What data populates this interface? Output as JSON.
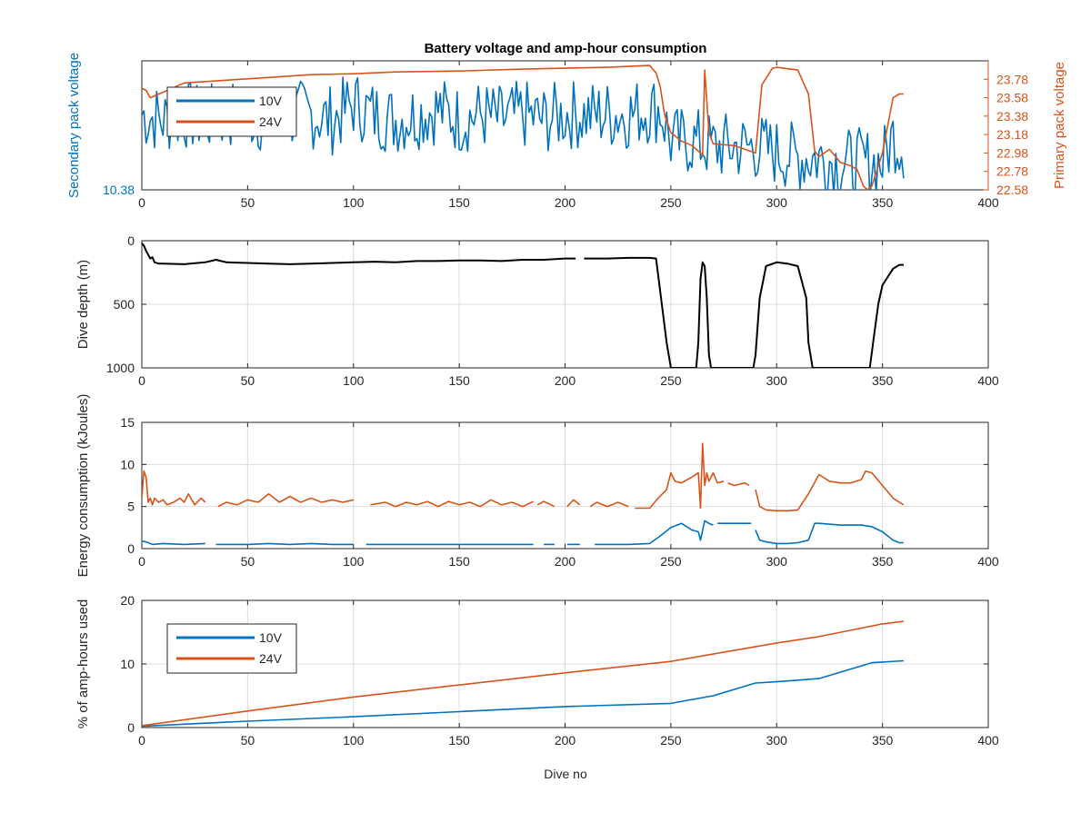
{
  "figure": {
    "title": "Battery voltage and amp-hour consumption",
    "xlabel": "Dive no"
  },
  "colors": {
    "blue": "#0072bd",
    "orange": "#d95319",
    "black": "#000000",
    "grid": "#dcdcdc",
    "axis": "#262626"
  },
  "chart_data": [
    {
      "type": "line",
      "title": "Battery voltage and amp-hour consumption",
      "xlabel": "",
      "ylabel": "Secondary pack voltage",
      "ylabel_right": "Primary pack voltage",
      "xlim": [
        0,
        400
      ],
      "ylim": [
        10.38,
        10.62
      ],
      "ylim_right": [
        22.58,
        23.98
      ],
      "xticks": [
        "0",
        "50",
        "100",
        "150",
        "200",
        "250",
        "300",
        "350",
        "400"
      ],
      "yticks": [
        "10.38"
      ],
      "yticks_right": [
        "22.58",
        "22.78",
        "22.98",
        "23.18",
        "23.38",
        "23.58",
        "23.78"
      ],
      "grid": false,
      "legend": {
        "placement": "top-left",
        "entries": [
          "10V",
          "24V"
        ]
      },
      "series": [
        {
          "name": "10V",
          "axis": "left",
          "style": "noisy",
          "x": [
            0,
            10,
            20,
            30,
            40,
            50,
            60,
            70,
            80,
            90,
            100,
            110,
            120,
            130,
            140,
            150,
            160,
            170,
            180,
            190,
            200,
            210,
            220,
            230,
            240,
            245,
            250,
            260,
            270,
            280,
            290,
            300,
            310,
            320,
            330,
            340,
            350,
            355,
            360
          ],
          "y": [
            10.52,
            10.51,
            10.52,
            10.51,
            10.52,
            10.52,
            10.51,
            10.52,
            10.52,
            10.51,
            10.54,
            10.52,
            10.51,
            10.52,
            10.53,
            10.51,
            10.52,
            10.51,
            10.52,
            10.51,
            10.52,
            10.52,
            10.52,
            10.52,
            10.53,
            10.53,
            10.47,
            10.47,
            10.46,
            10.46,
            10.46,
            10.45,
            10.44,
            10.44,
            10.43,
            10.43,
            10.43,
            10.48,
            10.46
          ]
        },
        {
          "name": "24V",
          "axis": "right",
          "x": [
            0,
            2,
            4,
            6,
            10,
            20,
            40,
            60,
            80,
            100,
            120,
            150,
            180,
            200,
            220,
            240,
            243,
            245,
            247,
            250,
            255,
            260,
            265,
            266,
            268,
            270,
            280,
            290,
            293,
            298,
            300,
            310,
            315,
            318,
            320,
            325,
            330,
            335,
            338,
            341,
            343,
            345,
            350,
            355,
            358,
            360
          ],
          "y": [
            23.68,
            23.66,
            23.58,
            23.6,
            23.64,
            23.74,
            23.77,
            23.8,
            23.83,
            23.84,
            23.86,
            23.87,
            23.89,
            23.9,
            23.91,
            23.93,
            23.85,
            23.7,
            23.4,
            23.2,
            23.11,
            23.06,
            22.96,
            23.88,
            23.2,
            23.08,
            23.06,
            22.98,
            23.72,
            23.9,
            23.91,
            23.88,
            23.62,
            23.0,
            22.94,
            23.02,
            22.88,
            22.84,
            22.8,
            22.62,
            22.58,
            22.62,
            22.98,
            23.58,
            23.62,
            23.62
          ]
        }
      ]
    },
    {
      "type": "line",
      "title": "",
      "xlabel": "",
      "ylabel": "Dive depth (m)",
      "xlim": [
        0,
        400
      ],
      "ylim": [
        0,
        1000
      ],
      "y_reversed": true,
      "xticks": [
        "0",
        "50",
        "100",
        "150",
        "200",
        "250",
        "300",
        "350",
        "400"
      ],
      "yticks": [
        "0",
        "500",
        "1000"
      ],
      "grid": true,
      "series": [
        {
          "name": "",
          "color": "black",
          "segments": [
            {
              "x": [
                0,
                1,
                2,
                3,
                4,
                5,
                6,
                8,
                10,
                20,
                30,
                35,
                40,
                50,
                60,
                70,
                80,
                90,
                100,
                110,
                120,
                130,
                140,
                150,
                160,
                170,
                180,
                190,
                200,
                205
              ],
              "y": [
                20,
                40,
                80,
                110,
                140,
                130,
                170,
                180,
                180,
                185,
                170,
                150,
                170,
                175,
                180,
                185,
                180,
                175,
                170,
                165,
                170,
                160,
                160,
                155,
                155,
                160,
                150,
                150,
                140,
                140
              ]
            },
            {
              "x": [
                209,
                210,
                220,
                230,
                240,
                243,
                245,
                248,
                250,
                262,
                263,
                264,
                265,
                266,
                267,
                268,
                269,
                280,
                289,
                290,
                292,
                295,
                300,
                305,
                310,
                314,
                315,
                317,
                320,
                340,
                344,
                346,
                348,
                350,
                355,
                358,
                360
              ],
              "y": [
                140,
                140,
                140,
                135,
                135,
                140,
                400,
                800,
                1000,
                1000,
                800,
                300,
                170,
                200,
                450,
                900,
                1000,
                1000,
                1000,
                900,
                450,
                200,
                170,
                180,
                200,
                450,
                800,
                1000,
                1000,
                1000,
                1000,
                750,
                500,
                350,
                220,
                190,
                190
              ]
            }
          ]
        }
      ]
    },
    {
      "type": "line",
      "title": "",
      "xlabel": "",
      "ylabel": "Energy consumption (kJoules)",
      "xlim": [
        0,
        400
      ],
      "ylim": [
        0,
        15
      ],
      "xticks": [
        "0",
        "50",
        "100",
        "150",
        "200",
        "250",
        "300",
        "350",
        "400"
      ],
      "yticks": [
        "0",
        "5",
        "10",
        "15"
      ],
      "grid": true,
      "series": [
        {
          "name": "24V",
          "color": "orange",
          "segments": [
            {
              "x": [
                0,
                1,
                2,
                3,
                4,
                5,
                6,
                8,
                10,
                12,
                15,
                18,
                20,
                22,
                25,
                28,
                30
              ],
              "y": [
                6.0,
                9.2,
                8.5,
                5.5,
                6.0,
                5.2,
                6.0,
                5.5,
                5.8,
                5.2,
                5.5,
                6.0,
                5.5,
                6.5,
                5.2,
                6.0,
                5.5
              ]
            },
            {
              "x": [
                36,
                40,
                45,
                50,
                55,
                60,
                65,
                70,
                75,
                80,
                85,
                90,
                95,
                100
              ],
              "y": [
                5.0,
                5.5,
                5.2,
                5.8,
                5.5,
                6.5,
                5.5,
                6.2,
                5.5,
                6.0,
                5.5,
                5.8,
                5.5,
                5.8
              ]
            },
            {
              "x": [
                108,
                115,
                120,
                125,
                130,
                135,
                140,
                145,
                150,
                155,
                160,
                165,
                170,
                175,
                180,
                185
              ],
              "y": [
                5.2,
                5.5,
                5.0,
                5.5,
                5.2,
                5.6,
                5.0,
                5.6,
                5.2,
                5.5,
                5.0,
                5.8,
                5.2,
                5.5,
                5.0,
                5.6
              ]
            },
            {
              "x": [
                187,
                190,
                195
              ],
              "y": [
                5.2,
                5.6,
                5.0
              ]
            },
            {
              "x": [
                201,
                204,
                207
              ],
              "y": [
                5.0,
                5.8,
                5.2
              ]
            },
            {
              "x": [
                212,
                215,
                220,
                225,
                230
              ],
              "y": [
                5.0,
                5.5,
                5.0,
                5.5,
                5.0
              ]
            },
            {
              "x": [
                233,
                240,
                244,
                248,
                250,
                252,
                255,
                260,
                263,
                264,
                265,
                266,
                267,
                268,
                270,
                272,
                275
              ],
              "y": [
                4.8,
                4.8,
                6.0,
                7.0,
                9.0,
                8.0,
                7.8,
                8.5,
                9.0,
                4.8,
                12.5,
                7.5,
                9.0,
                8.0,
                9.0,
                7.8,
                8.0
              ]
            },
            {
              "x": [
                277,
                280,
                285,
                287
              ],
              "y": [
                7.8,
                7.5,
                7.8,
                7.5
              ]
            },
            {
              "x": [
                290,
                292,
                295,
                300,
                305,
                310,
                315,
                320,
                325,
                330,
                335,
                340,
                342,
                345,
                350,
                355,
                358,
                360
              ],
              "y": [
                7.0,
                5.0,
                4.6,
                4.5,
                4.5,
                4.6,
                6.5,
                8.8,
                8.0,
                7.8,
                7.8,
                8.2,
                9.2,
                9.0,
                7.5,
                6.0,
                5.5,
                5.2
              ]
            }
          ]
        },
        {
          "name": "10V",
          "color": "blue",
          "segments": [
            {
              "x": [
                0,
                2,
                5,
                10,
                20,
                30
              ],
              "y": [
                0.9,
                0.8,
                0.5,
                0.6,
                0.5,
                0.6
              ]
            },
            {
              "x": [
                35,
                50,
                60,
                70,
                80,
                90,
                100
              ],
              "y": [
                0.5,
                0.5,
                0.6,
                0.5,
                0.6,
                0.5,
                0.5
              ]
            },
            {
              "x": [
                106,
                120,
                140,
                160,
                180,
                185
              ],
              "y": [
                0.5,
                0.5,
                0.5,
                0.5,
                0.5,
                0.5
              ]
            },
            {
              "x": [
                190,
                195
              ],
              "y": [
                0.5,
                0.5
              ]
            },
            {
              "x": [
                201,
                207
              ],
              "y": [
                0.5,
                0.5
              ]
            },
            {
              "x": [
                214,
                230,
                240,
                245,
                250,
                255,
                260,
                263,
                264,
                266,
                268,
                270
              ],
              "y": [
                0.5,
                0.5,
                0.6,
                1.5,
                2.5,
                3.0,
                2.2,
                2.0,
                1.0,
                3.3,
                3.0,
                2.8
              ]
            },
            {
              "x": [
                272,
                280,
                288
              ],
              "y": [
                3.0,
                3.0,
                3.0
              ]
            },
            {
              "x": [
                290,
                292,
                295,
                300,
                305,
                310,
                315,
                318,
                320,
                330,
                340,
                345,
                350,
                355,
                358,
                360
              ],
              "y": [
                2.2,
                1.0,
                0.8,
                0.6,
                0.6,
                0.7,
                1.0,
                3.0,
                3.0,
                2.8,
                2.8,
                2.6,
                2.0,
                1.0,
                0.7,
                0.7
              ]
            }
          ]
        }
      ]
    },
    {
      "type": "line",
      "title": "",
      "xlabel": "Dive no",
      "ylabel": "% of amp-hours used",
      "xlim": [
        0,
        400
      ],
      "ylim": [
        0,
        20
      ],
      "xticks": [
        "0",
        "50",
        "100",
        "150",
        "200",
        "250",
        "300",
        "350",
        "400"
      ],
      "yticks": [
        "0",
        "10",
        "20"
      ],
      "grid": true,
      "legend": {
        "placement": "top-left",
        "entries": [
          "10V",
          "24V"
        ]
      },
      "series": [
        {
          "name": "10V",
          "color": "blue",
          "x": [
            0,
            50,
            100,
            150,
            200,
            250,
            270,
            290,
            300,
            320,
            345,
            350,
            360
          ],
          "y": [
            0.2,
            1.0,
            1.7,
            2.5,
            3.3,
            3.8,
            5.0,
            7.0,
            7.2,
            7.7,
            10.2,
            10.3,
            10.5
          ]
        },
        {
          "name": "24V",
          "color": "orange",
          "x": [
            0,
            50,
            100,
            150,
            200,
            250,
            300,
            320,
            350,
            360
          ],
          "y": [
            0.3,
            2.6,
            4.8,
            6.7,
            8.6,
            10.4,
            13.3,
            14.3,
            16.3,
            16.7
          ]
        }
      ]
    }
  ]
}
